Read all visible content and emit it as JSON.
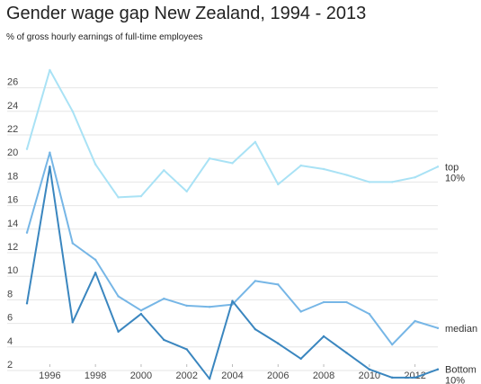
{
  "title": "Gender wage gap New Zealand, 1994 - 2013",
  "subtitle": "% of gross hourly earnings of full-time employees",
  "colors": {
    "top": "#a9e2f5",
    "median": "#76b6e6",
    "bottom": "#3a86bf",
    "grid": "#e6e6e6",
    "tick_text": "#444444"
  },
  "chart_data": {
    "type": "line",
    "title": "Gender wage gap New Zealand, 1994 - 2013",
    "subtitle": "% of gross hourly earnings of full-time employees",
    "xlabel": "",
    "ylabel": "",
    "x": [
      1995,
      1996,
      1997,
      1998,
      1999,
      2000,
      2001,
      2002,
      2003,
      2004,
      2005,
      2006,
      2007,
      2008,
      2009,
      2010,
      2011,
      2012,
      2013
    ],
    "xticks": [
      "1996",
      "1998",
      "2000",
      "2002",
      "2004",
      "2006",
      "2008",
      "2010",
      "2012"
    ],
    "yticks": [
      "2",
      "4",
      "6",
      "8",
      "10",
      "12",
      "14",
      "16",
      "18",
      "20",
      "22",
      "24",
      "26"
    ],
    "ylim": [
      1,
      28
    ],
    "grid": true,
    "legend": "labels at line ends (right)",
    "series": [
      {
        "key": "top",
        "label_line1": "top",
        "label_line2": "10%",
        "values": [
          20.8,
          27.5,
          24.0,
          19.5,
          16.7,
          16.8,
          19.0,
          17.2,
          20.0,
          19.6,
          21.4,
          17.8,
          19.4,
          19.1,
          18.6,
          18.0,
          18.0,
          18.4,
          19.3
        ]
      },
      {
        "key": "median",
        "label_line1": "median",
        "label_line2": "",
        "values": [
          13.7,
          20.5,
          12.8,
          11.4,
          8.3,
          7.1,
          8.1,
          7.5,
          7.4,
          7.6,
          9.6,
          9.3,
          7.0,
          7.8,
          7.8,
          6.8,
          4.2,
          6.2,
          5.6
        ]
      },
      {
        "key": "bottom",
        "label_line1": "Bottom",
        "label_line2": "10%",
        "values": [
          7.7,
          19.3,
          6.1,
          10.3,
          5.3,
          6.8,
          4.6,
          3.8,
          1.3,
          7.9,
          5.5,
          4.3,
          3.0,
          4.9,
          3.5,
          2.1,
          1.4,
          1.4,
          2.1
        ]
      }
    ]
  }
}
